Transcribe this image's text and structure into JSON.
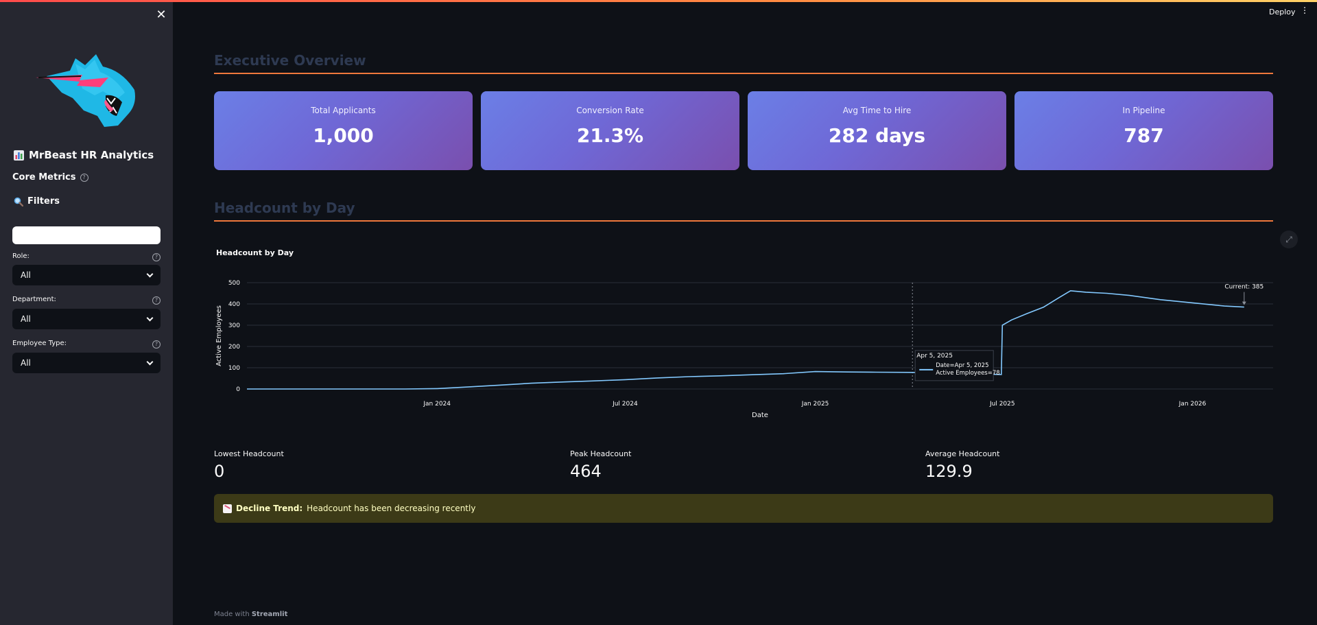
{
  "sidebar": {
    "app_title": "MrBeast HR Analytics",
    "core_metrics": "Core Metrics",
    "filters": "Filters",
    "search_value": "",
    "role_label": "Role:",
    "role_value": "All",
    "department_label": "Department:",
    "department_value": "All",
    "employee_type_label": "Employee Type:",
    "employee_type_value": "All"
  },
  "header": {
    "deploy": "Deploy"
  },
  "sections": {
    "executive": "Executive Overview",
    "headcount": "Headcount by Day"
  },
  "cards": [
    {
      "label": "Total Applicants",
      "value": "1,000"
    },
    {
      "label": "Conversion Rate",
      "value": "21.3%"
    },
    {
      "label": "Avg Time to Hire",
      "value": "282 days"
    },
    {
      "label": "In Pipeline",
      "value": "787"
    }
  ],
  "chart_title": "Headcount by Day",
  "chart_data": {
    "type": "line",
    "title": "Headcount by Day",
    "xlabel": "Date",
    "ylabel": "Active Employees",
    "x_ticks": [
      "Jan 2024",
      "Jul 2024",
      "Jan 2025",
      "Jul 2025",
      "Jan 2026"
    ],
    "y_ticks": [
      0,
      100,
      200,
      300,
      400,
      500
    ],
    "ylim": [
      0,
      500
    ],
    "grid": true,
    "series": [
      {
        "x": [
          "2023-07-01",
          "2023-10-01",
          "2023-12-01",
          "2024-01-01",
          "2024-02-01",
          "2024-03-01",
          "2024-04-01",
          "2024-05-01",
          "2024-06-01",
          "2024-07-01",
          "2024-08-01",
          "2024-09-01",
          "2024-10-01",
          "2024-11-01",
          "2024-12-01",
          "2025-01-01",
          "2025-02-01",
          "2025-03-01",
          "2025-04-05",
          "2025-05-01",
          "2025-06-01",
          "2025-06-30",
          "2025-07-01",
          "2025-07-10",
          "2025-07-25",
          "2025-08-10",
          "2025-08-25",
          "2025-09-05",
          "2025-09-20",
          "2025-10-10",
          "2025-11-01",
          "2025-12-01",
          "2026-01-01",
          "2026-02-01",
          "2026-02-20"
        ],
        "y": [
          0,
          0,
          0,
          2,
          10,
          18,
          27,
          33,
          38,
          44,
          52,
          58,
          62,
          67,
          72,
          82,
          80,
          79,
          78,
          75,
          72,
          68,
          300,
          325,
          355,
          385,
          430,
          462,
          455,
          450,
          440,
          420,
          405,
          390,
          385
        ]
      }
    ],
    "annotations": [
      {
        "text": "Current: 385",
        "x": "2026-02-20",
        "y": 385
      }
    ],
    "hover_tooltip": {
      "header": "Apr 5, 2025",
      "line1": "Date=Apr 5, 2025",
      "line2": "Active Employees=78",
      "x": "2025-04-05",
      "y": 78
    }
  },
  "stats": [
    {
      "label": "Lowest Headcount",
      "value": "0"
    },
    {
      "label": "Peak Headcount",
      "value": "464"
    },
    {
      "label": "Average Headcount",
      "value": "129.9"
    }
  ],
  "alert": {
    "title": "Decline Trend:",
    "text": "Headcount has been decreasing recently"
  },
  "footer": {
    "prefix": "Made with",
    "brand": "Streamlit"
  },
  "colors": {
    "accent": "#f0783c",
    "line": "#83c9ff",
    "card_gradient_start": "#6b7fe6",
    "card_gradient_end": "#7a4fae"
  }
}
